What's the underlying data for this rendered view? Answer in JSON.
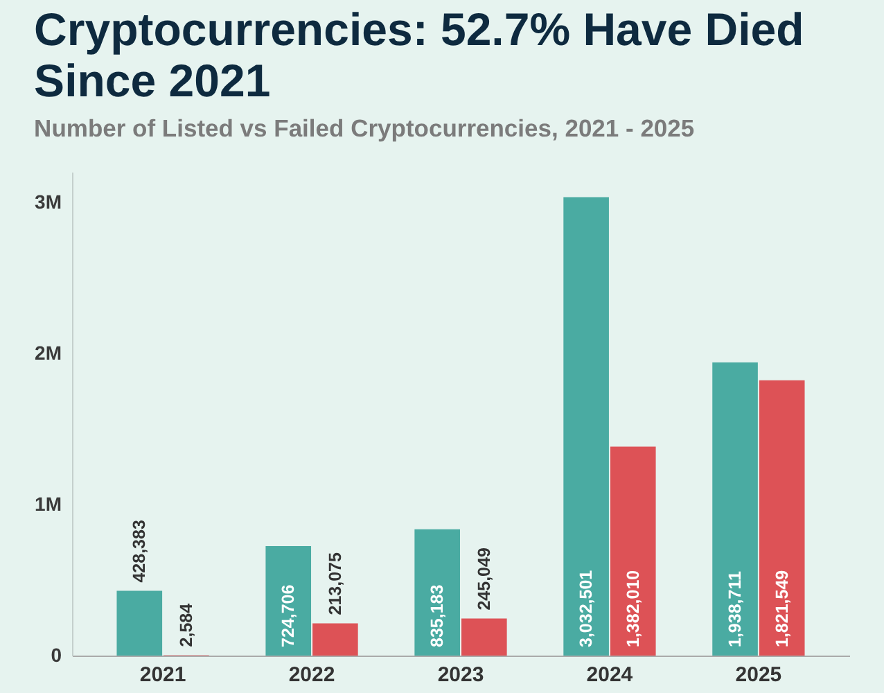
{
  "chart_data": {
    "type": "bar",
    "title": "Cryptocurrencies: 52.7% Have Died Since 2021",
    "subtitle": "Number of Listed vs Failed Cryptocurrencies, 2021 - 2025",
    "categories": [
      "2021",
      "2022",
      "2023",
      "2024",
      "2025"
    ],
    "series": [
      {
        "color": "#4aaba2",
        "values": [
          428383,
          724706,
          835183,
          3032501,
          1938711
        ],
        "value_labels": [
          "428,383",
          "724,706",
          "835,183",
          "3,032,501",
          "1,938,711"
        ]
      },
      {
        "color": "#dd5256",
        "values": [
          2584,
          213075,
          245049,
          1382010,
          1821549
        ],
        "value_labels": [
          "2,584",
          "213,075",
          "245,049",
          "1,382,010",
          "1,821,549"
        ]
      }
    ],
    "ylim": [
      0,
      3200000
    ],
    "yticks": [
      0,
      {
        "value": 1000000,
        "label": "1M"
      },
      {
        "value": 2000000,
        "label": "2M"
      },
      {
        "value": 3000000,
        "label": "3M"
      }
    ]
  }
}
